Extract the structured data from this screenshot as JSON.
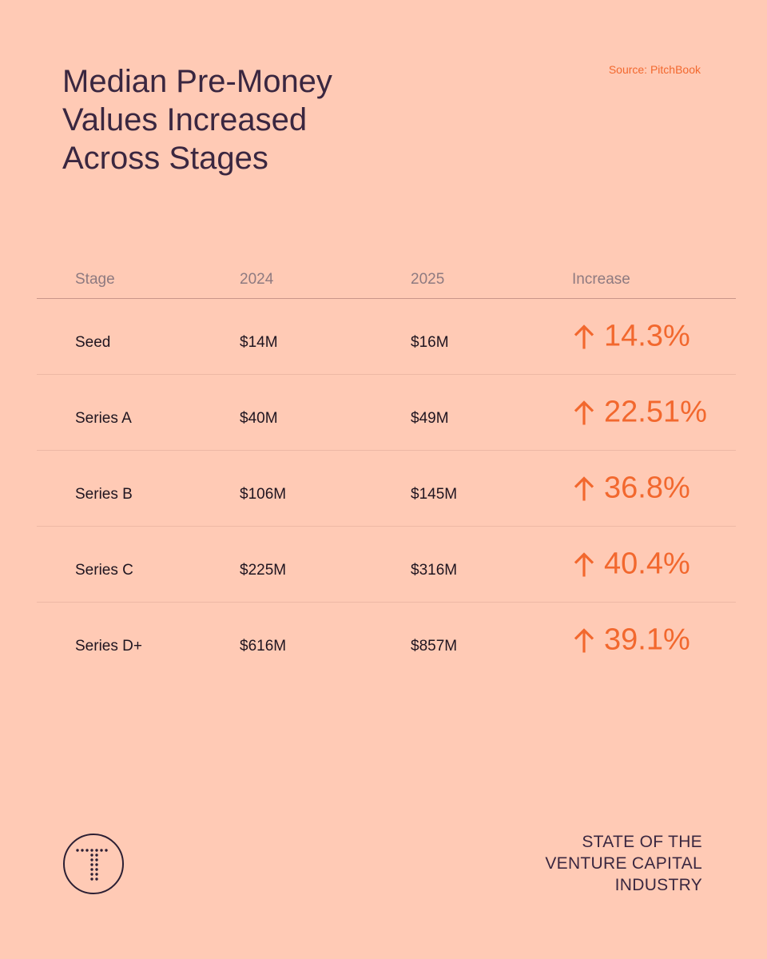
{
  "title_lines": [
    "Median Pre-Money",
    "Values Increased",
    "Across Stages"
  ],
  "source": "Source: PitchBook",
  "table": {
    "headers": [
      "Stage",
      "2024",
      "2025",
      "Increase"
    ],
    "rows": [
      {
        "stage": "Seed",
        "y2024": "$14M",
        "y2025": "$16M",
        "increase": "14.3%"
      },
      {
        "stage": "Series A",
        "y2024": "$40M",
        "y2025": "$49M",
        "increase": "22.51%"
      },
      {
        "stage": "Series B",
        "y2024": "$106M",
        "y2025": "$145M",
        "increase": "36.8%"
      },
      {
        "stage": "Series C",
        "y2024": "$225M",
        "y2025": "$316M",
        "increase": "40.4%"
      },
      {
        "stage": "Series D+",
        "y2024": "$616M",
        "y2025": "$857M",
        "increase": "39.1%"
      }
    ]
  },
  "chart_data": {
    "type": "table",
    "title": "Median Pre-Money Values Increased Across Stages",
    "columns": [
      "Stage",
      "2024",
      "2025",
      "Increase"
    ],
    "categories": [
      "Seed",
      "Series A",
      "Series B",
      "Series C",
      "Series D+"
    ],
    "series": [
      {
        "name": "2024",
        "values": [
          14,
          40,
          106,
          225,
          616
        ]
      },
      {
        "name": "2025",
        "values": [
          16,
          49,
          145,
          316,
          857
        ]
      },
      {
        "name": "Increase",
        "values": [
          14.3,
          22.51,
          36.8,
          40.4,
          39.1
        ]
      }
    ]
  },
  "footer_lines": [
    "STATE OF THE",
    "VENTURE CAPITAL",
    "INDUSTRY"
  ],
  "colors": {
    "background": "#FFCAB5",
    "accent": "#F2682E",
    "text": "#2C1F33",
    "header_text": "#8E7A80"
  },
  "icons": {
    "increase": "arrow-up-icon",
    "logo": "dotted-t-logo-icon"
  }
}
